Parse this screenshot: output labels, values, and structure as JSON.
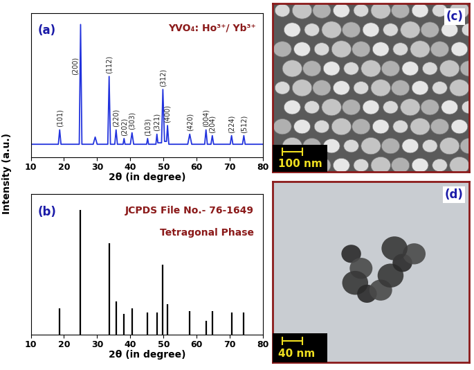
{
  "shared_y_label": "Intensity (a.u.)",
  "chart_data": [
    {
      "type": "line",
      "panel": "(a)",
      "title": "YVO₄: Ho³⁺/ Yb³⁺",
      "x_label": "2θ (in degree)",
      "color": "#2233dd",
      "x": [
        10,
        18.3,
        18.7,
        19.1,
        24.6,
        25.0,
        25.4,
        28.8,
        29.4,
        30.0,
        33.2,
        33.6,
        34.0,
        35.3,
        35.7,
        36.1,
        37.8,
        38.1,
        38.4,
        40.0,
        40.5,
        41.0,
        44.9,
        45.2,
        45.5,
        47.7,
        48.0,
        48.3,
        49.4,
        49.8,
        50.3,
        50.9,
        51.2,
        51.6,
        57.3,
        57.9,
        58.5,
        62.4,
        62.8,
        63.2,
        64.3,
        64.7,
        65.1,
        70.1,
        70.5,
        70.9,
        73.8,
        74.2,
        74.6,
        80
      ],
      "values": [
        9,
        9,
        19,
        9,
        9,
        92,
        9,
        9,
        14,
        9,
        9,
        56,
        9,
        9,
        19,
        9,
        9,
        13,
        9,
        9,
        17,
        9,
        9,
        13,
        9,
        9,
        16,
        10,
        10,
        47,
        11,
        11,
        22,
        9,
        9,
        16,
        9,
        9,
        19,
        9,
        9,
        15,
        9,
        9,
        15,
        9,
        9,
        15,
        9,
        9
      ],
      "annotations": [
        {
          "text": "(101)",
          "x": 18.7
        },
        {
          "text": "(200)",
          "x": 25.0
        },
        {
          "text": "(112)",
          "x": 33.6
        },
        {
          "text": "(220)",
          "x": 35.7
        },
        {
          "text": "(202)",
          "x": 38.1
        },
        {
          "text": "(303)",
          "x": 40.5
        },
        {
          "text": "(103)",
          "x": 45.2
        },
        {
          "text": "(321)",
          "x": 48.0
        },
        {
          "text": "(312)",
          "x": 49.8
        },
        {
          "text": "(400)",
          "x": 51.2
        },
        {
          "text": "(420)",
          "x": 57.9
        },
        {
          "text": "(004)",
          "x": 62.8
        },
        {
          "text": "(204)",
          "x": 64.7
        },
        {
          "text": "(224)",
          "x": 70.5
        },
        {
          "text": "(512)",
          "x": 74.2
        }
      ],
      "xlim": [
        10,
        80
      ],
      "xticks": [
        10,
        20,
        30,
        40,
        50,
        60,
        70,
        80
      ],
      "ylim": [
        0,
        100
      ],
      "tick_labels": "x"
    },
    {
      "type": "stem",
      "panel": "(b)",
      "title": "JCPDS File No.- 76-1649",
      "subtitle": "Tetragonal Phase",
      "x_label": "2θ (in degree)",
      "color": "#000000",
      "x": [
        18.7,
        25.0,
        33.6,
        35.7,
        38.1,
        40.5,
        45.2,
        48.0,
        49.8,
        51.2,
        57.9,
        62.8,
        64.7,
        70.5,
        74.2
      ],
      "values": [
        19,
        89,
        65,
        24,
        15,
        19,
        16,
        16,
        50,
        22,
        17,
        10,
        17,
        16,
        16
      ],
      "xlim": [
        10,
        80
      ],
      "xticks": [
        10,
        20,
        30,
        40,
        50,
        60,
        70,
        80
      ],
      "ylim": [
        0,
        100
      ],
      "tick_labels": "x"
    }
  ],
  "images": [
    {
      "panel": "(c)",
      "scale_bar": "100 nm"
    },
    {
      "panel": "(d)",
      "scale_bar": "40 nm"
    }
  ]
}
